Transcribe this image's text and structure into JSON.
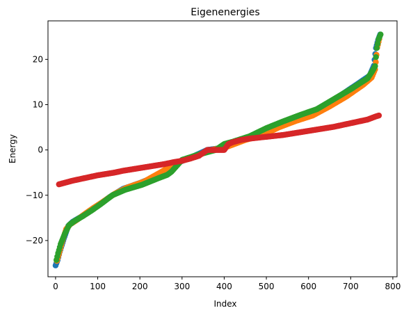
{
  "chart_data": {
    "type": "scatter",
    "title": "Eigenenergies",
    "xlabel": "Index",
    "ylabel": "Energy",
    "xlim": [
      -18,
      810
    ],
    "ylim": [
      -28,
      28.5
    ],
    "xticks": [
      0,
      100,
      200,
      300,
      400,
      500,
      600,
      700,
      800
    ],
    "yticks": [
      -20,
      -10,
      0,
      10,
      20
    ],
    "xtick_labels": [
      "0",
      "100",
      "200",
      "300",
      "400",
      "500",
      "600",
      "700",
      "800"
    ],
    "ytick_labels": [
      "−20",
      "−10",
      "0",
      "10",
      "20"
    ],
    "grid": false,
    "legend": "none",
    "series_colors": [
      "#1f77b4",
      "#ff7f0e",
      "#2ca02c",
      "#d62728"
    ],
    "series": [
      {
        "x": [
          0,
          5,
          10,
          20,
          30,
          40,
          60,
          80,
          100,
          130,
          160,
          200,
          240,
          280,
          320,
          360,
          400,
          440,
          480,
          520,
          560,
          600,
          640,
          680,
          720,
          745,
          755,
          760,
          765,
          770
        ],
        "y": [
          -25.5,
          -24.3,
          -22.5,
          -19.5,
          -16.8,
          -15.9,
          -14.8,
          -13.5,
          -12.3,
          -10.3,
          -8.6,
          -7.3,
          -5.8,
          -3.2,
          -1.7,
          0.0,
          0.5,
          2.0,
          3.0,
          5.3,
          6.7,
          8.0,
          10.0,
          12.3,
          14.8,
          16.4,
          18.6,
          22.5,
          24.3,
          25.5
        ]
      },
      {
        "x": [
          3,
          8,
          15,
          25,
          35,
          50,
          70,
          90,
          110,
          140,
          170,
          210,
          250,
          290,
          330,
          370,
          410,
          450,
          490,
          530,
          570,
          610,
          650,
          690,
          730,
          750,
          758,
          763,
          768
        ],
        "y": [
          -24.5,
          -23.0,
          -20.5,
          -17.5,
          -16.4,
          -15.5,
          -14.1,
          -12.8,
          -11.6,
          -9.7,
          -8.3,
          -7.0,
          -4.9,
          -2.7,
          -1.5,
          0.0,
          0.8,
          2.2,
          3.2,
          5.0,
          6.4,
          7.6,
          9.6,
          11.8,
          14.4,
          16.0,
          17.8,
          22.6,
          24.5
        ]
      },
      {
        "x": [
          2,
          6,
          12,
          22,
          32,
          45,
          65,
          85,
          105,
          135,
          165,
          205,
          245,
          265,
          275,
          300,
          340,
          380,
          400,
          420,
          460,
          500,
          540,
          580,
          620,
          660,
          700,
          740,
          752,
          758,
          762,
          766,
          771
        ],
        "y": [
          -24.3,
          -22.8,
          -20.8,
          -18.5,
          -16.6,
          -15.7,
          -14.6,
          -13.4,
          -12.1,
          -10.0,
          -8.8,
          -7.7,
          -6.2,
          -5.5,
          -4.8,
          -2.2,
          -1.0,
          0.0,
          1.3,
          1.8,
          3.0,
          4.8,
          6.3,
          7.7,
          9.0,
          11.2,
          13.4,
          15.8,
          17.5,
          18.5,
          22.5,
          24.4,
          25.5
        ]
      },
      {
        "x": [
          8,
          20,
          40,
          60,
          80,
          100,
          120,
          140,
          160,
          180,
          200,
          220,
          240,
          260,
          280,
          300,
          320,
          340,
          360,
          380,
          400,
          410,
          420,
          440,
          460,
          480,
          500,
          520,
          540,
          560,
          580,
          600,
          620,
          640,
          660,
          680,
          700,
          720,
          740,
          760,
          767
        ],
        "y": [
          -7.6,
          -7.3,
          -6.8,
          -6.4,
          -6.0,
          -5.6,
          -5.3,
          -5.0,
          -4.6,
          -4.3,
          -4.0,
          -3.7,
          -3.4,
          -3.1,
          -2.7,
          -2.4,
          -1.9,
          -1.3,
          0.0,
          0.0,
          0.0,
          1.3,
          1.7,
          2.2,
          2.5,
          2.7,
          2.9,
          3.1,
          3.3,
          3.6,
          3.9,
          4.2,
          4.5,
          4.8,
          5.1,
          5.5,
          5.9,
          6.3,
          6.7,
          7.4,
          7.6
        ]
      }
    ]
  }
}
